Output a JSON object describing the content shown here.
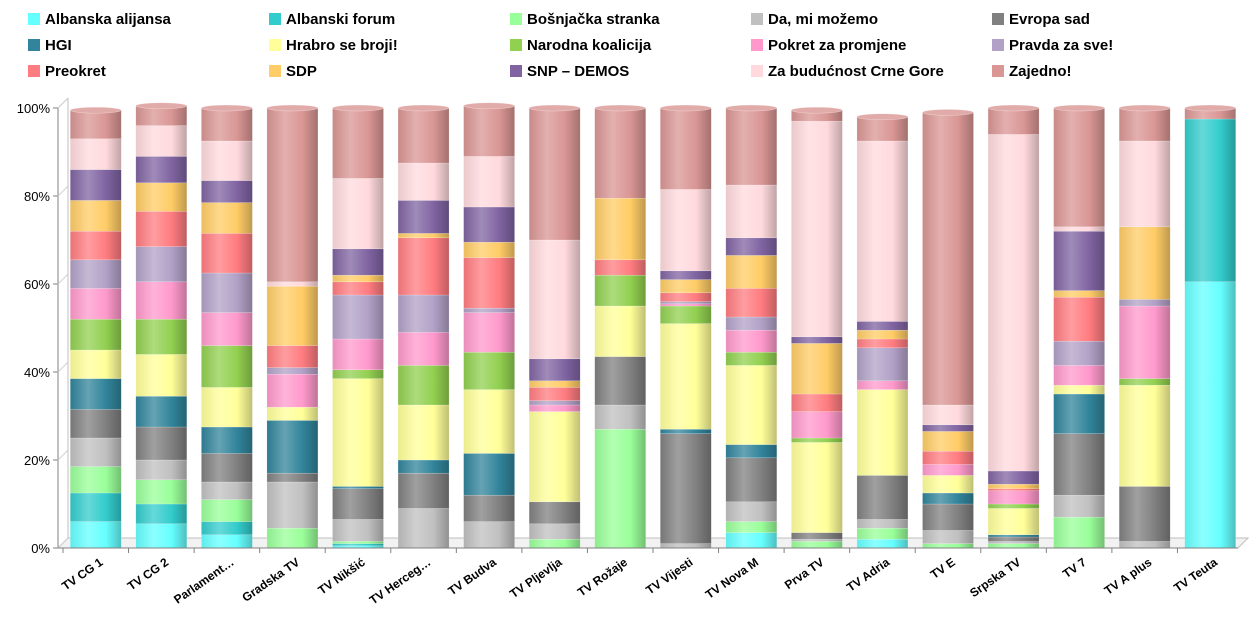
{
  "chart_data": {
    "type": "bar",
    "stacked": true,
    "percent": true,
    "title": "",
    "xlabel": "",
    "ylabel": "",
    "ylim": [
      0,
      100
    ],
    "y_ticks": [
      "0%",
      "20%",
      "40%",
      "60%",
      "80%",
      "100%"
    ],
    "legend_position": "top",
    "categories": [
      "TV CG 1",
      "TV CG 2",
      "Parlament…",
      "Gradska TV",
      "TV Nikšić",
      "TV Herceg…",
      "TV Budva",
      "TV Pljevlja",
      "TV Rožaje",
      "TV Vijesti",
      "TV Nova M",
      "Prva TV",
      "TV Adria",
      "TV E",
      "Srpska TV",
      "TV 7",
      "TV A plus",
      "TV Teuta"
    ],
    "series": [
      {
        "name": "Albanska alijansa",
        "color": "#66FFFF",
        "values": [
          6,
          5.5,
          3,
          0,
          0.5,
          0,
          0,
          0,
          0,
          0,
          3.5,
          0,
          2,
          0,
          0,
          0,
          0,
          60.5
        ]
      },
      {
        "name": "Albanski forum",
        "color": "#33CCCC",
        "values": [
          6.5,
          4.5,
          3,
          0,
          0.5,
          0,
          0,
          0,
          0,
          0,
          0,
          0,
          0,
          0,
          0,
          0,
          0,
          37
        ]
      },
      {
        "name": "Bošnjačka stranka",
        "color": "#99FF99",
        "values": [
          6,
          5.5,
          5,
          4.5,
          0.5,
          0,
          0,
          2,
          27,
          0,
          2.5,
          1.5,
          2.5,
          1,
          1,
          7,
          0,
          0
        ]
      },
      {
        "name": "Da, mi možemo",
        "color": "#C0C0C0",
        "values": [
          6.5,
          4.5,
          4,
          10.5,
          5,
          9,
          6,
          3.5,
          5.5,
          1,
          4.5,
          0.5,
          2,
          3,
          0.5,
          5,
          1.5,
          0
        ]
      },
      {
        "name": "Evropa sad",
        "color": "#808080",
        "values": [
          6.5,
          7.5,
          6.5,
          2,
          7,
          8,
          6,
          5,
          11,
          25,
          10,
          1.5,
          10,
          6,
          1,
          14,
          12.5,
          0
        ]
      },
      {
        "name": "HGI",
        "color": "#31849B",
        "values": [
          7,
          7,
          6,
          12,
          0.5,
          3,
          9.5,
          0,
          0,
          1,
          3,
          0,
          0,
          2.5,
          0.5,
          9,
          0,
          0
        ]
      },
      {
        "name": "Hrabro se broji!",
        "color": "#FFFF99",
        "values": [
          6.5,
          9.5,
          9,
          3,
          24.5,
          12.5,
          14.5,
          20.5,
          11.5,
          24,
          18,
          20.5,
          19.5,
          4,
          6,
          2,
          23,
          0
        ]
      },
      {
        "name": "Narodna koalicija",
        "color": "#92D050",
        "values": [
          7,
          8,
          9.5,
          0,
          2,
          9,
          8.5,
          0,
          7,
          4,
          3,
          1,
          0,
          0,
          1,
          0,
          1.5,
          0
        ]
      },
      {
        "name": "Pokret za promjene",
        "color": "#FF99CC",
        "values": [
          7,
          8.5,
          7.5,
          7.5,
          7,
          7.5,
          9,
          1.5,
          0,
          0.5,
          5,
          6,
          2,
          2.5,
          3,
          4.5,
          16.5,
          0
        ]
      },
      {
        "name": "Pravda za sve!",
        "color": "#B2A1C7",
        "values": [
          6.5,
          8,
          9,
          1.5,
          10,
          8.5,
          1,
          1,
          0,
          0.5,
          3,
          0,
          7.5,
          0,
          0,
          5.5,
          1.5,
          0
        ]
      },
      {
        "name": "Preokret",
        "color": "#FF7C80",
        "values": [
          6.5,
          8,
          9,
          5,
          3,
          13,
          11.5,
          3,
          3.5,
          2,
          6.5,
          4,
          2,
          3,
          0.5,
          10,
          0,
          0
        ]
      },
      {
        "name": "SDP",
        "color": "#FFCC66",
        "values": [
          7,
          6.5,
          7,
          13.5,
          1.5,
          1,
          3.5,
          1.5,
          14,
          3,
          7.5,
          11.5,
          2,
          4.5,
          1,
          1.5,
          16.5,
          0
        ]
      },
      {
        "name": "SNP – DEMOS",
        "color": "#8064A2",
        "values": [
          7,
          6,
          5,
          0,
          6,
          7.5,
          8,
          5,
          0,
          2,
          4,
          1.5,
          2,
          1.5,
          3,
          13.5,
          0,
          0
        ]
      },
      {
        "name": "Za budućnost Crne Gore",
        "color": "#FFD9DD",
        "values": [
          7,
          7,
          9,
          1,
          16,
          8.5,
          11.5,
          27,
          0,
          18.5,
          12,
          49,
          41,
          4.5,
          76.5,
          1,
          19.5,
          0
        ]
      },
      {
        "name": "Zajedno!",
        "color": "#D99694",
        "values": [
          6.5,
          4.5,
          7.5,
          39.5,
          16,
          12.5,
          11.5,
          30,
          20.5,
          18.5,
          17.5,
          2.5,
          5.5,
          66.5,
          6,
          27,
          7.5,
          2.5
        ]
      }
    ]
  }
}
